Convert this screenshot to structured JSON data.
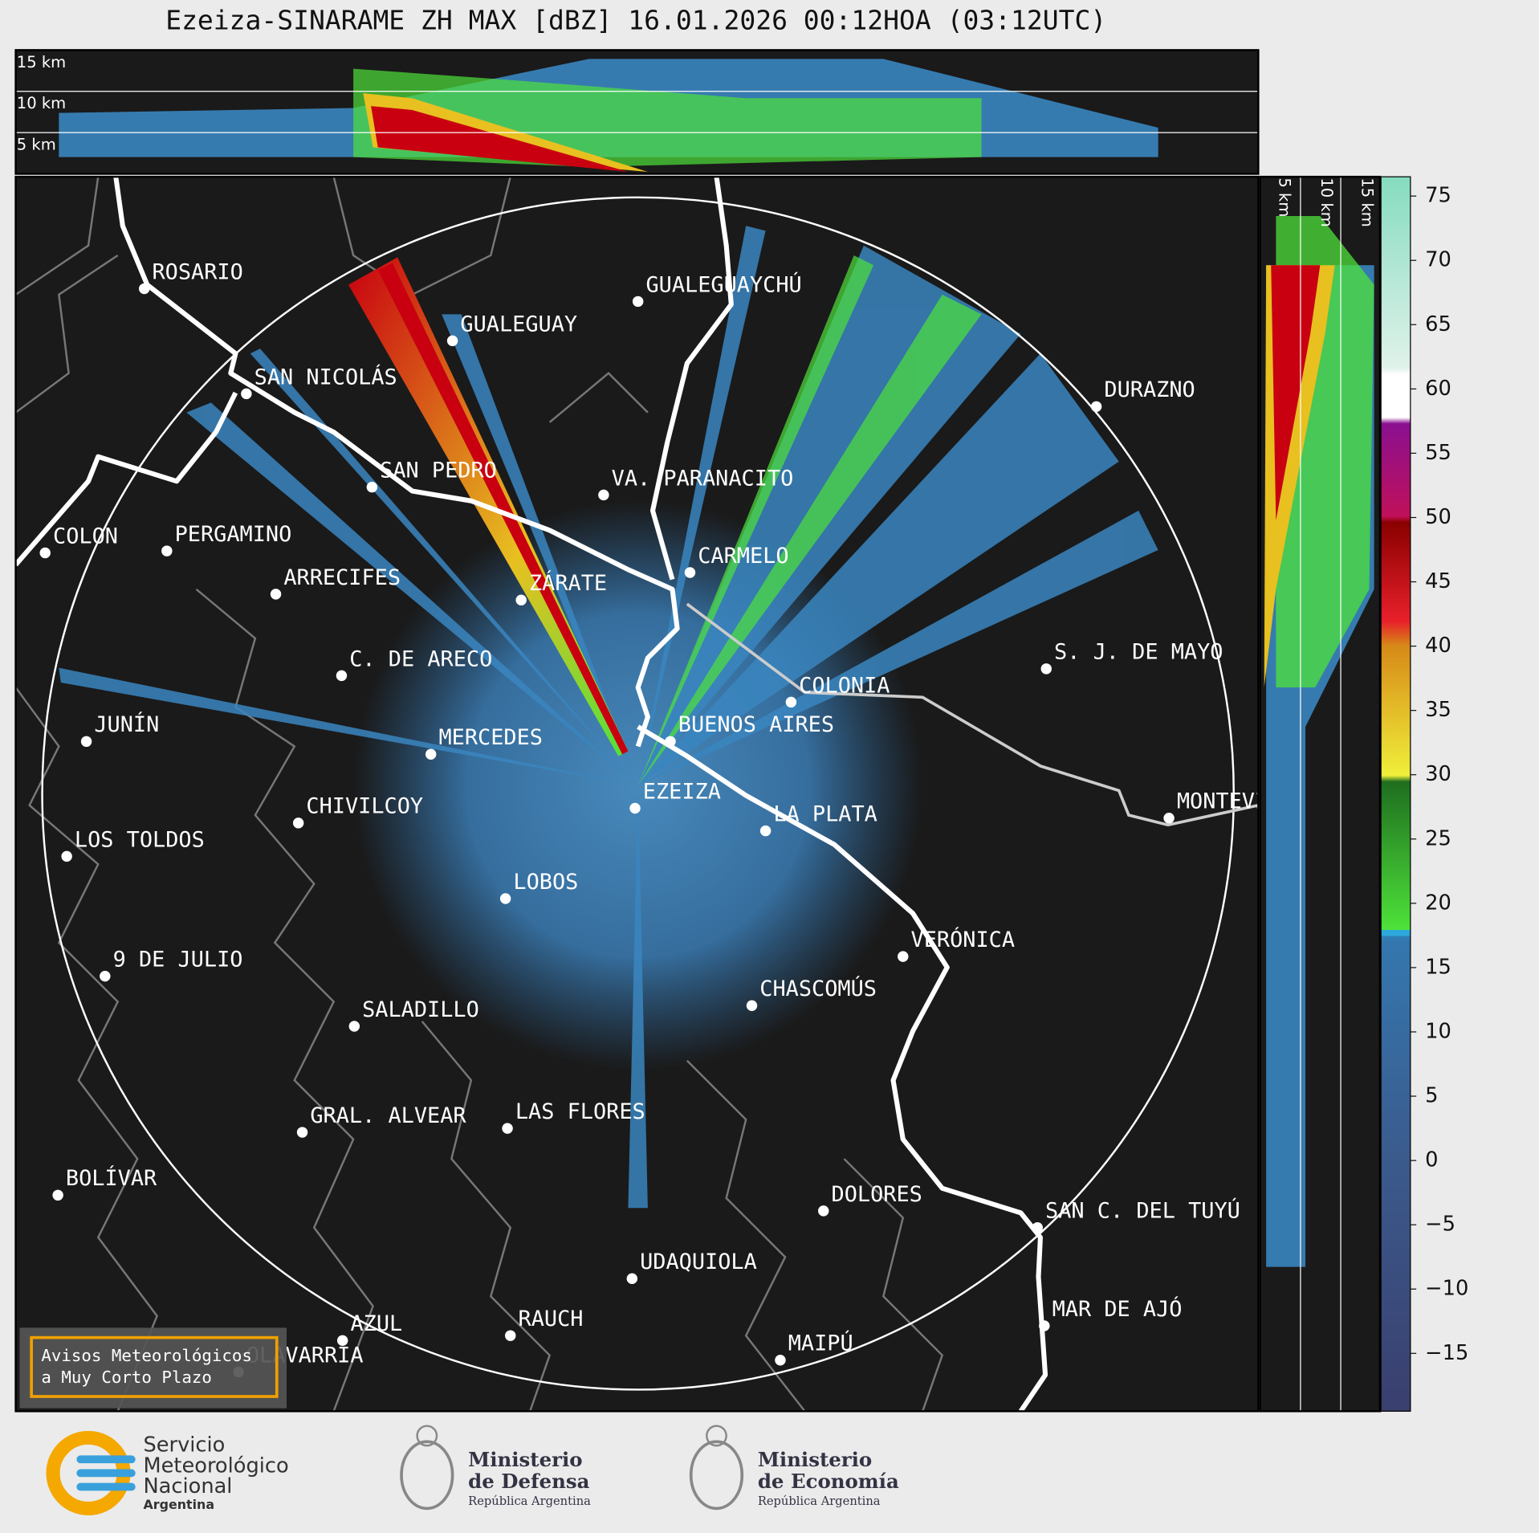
{
  "title": "Ezeiza-SINARAME ZH MAX [dBZ] 16.01.2026 00:12HOA (03:12UTC)",
  "top_panel": {
    "heights": [
      "15 km",
      "10 km",
      "5 km"
    ]
  },
  "side_panel": {
    "heights": [
      "5 km",
      "10 km",
      "15 km"
    ]
  },
  "cities": [
    "ROSARIO",
    "GUALEGUAYCHÚ",
    "GUALEGUAY",
    "SAN NICOLÁS",
    "DURAZNO",
    "SAN PEDRO",
    "VA. PARANACITO",
    "COLON",
    "PERGAMINO",
    "CARMELO",
    "ARRECIFES",
    "ZÁRATE",
    "S. J. DE MAYO",
    "C. DE ARECO",
    "COLONIA",
    "BUENOS AIRES",
    "JUNÍN",
    "MERCEDES",
    "EZEIZA",
    "MONTEVIDEO",
    "CHIVILCOY",
    "LA PLATA",
    "LOS TOLDOS",
    "LOBOS",
    "VERÓNICA",
    "9 DE JULIO",
    "CHASCOMÚS",
    "SALADILLO",
    "GRAL. ALVEAR",
    "LAS FLORES",
    "BOLÍVAR",
    "DOLORES",
    "SAN C. DEL TUYÚ",
    "UDAQUIOLA",
    "MAR DE AJÓ",
    "AZUL",
    "RAUCH",
    "OLAVARRÍA",
    "MAIPÚ"
  ],
  "warning_box": [
    "Avisos Meteorológicos",
    "a Muy Corto Plazo"
  ],
  "colorbar": {
    "lim": [
      -19.5,
      76.5
    ],
    "ticks": [
      75,
      70,
      65,
      60,
      55,
      50,
      45,
      40,
      35,
      30,
      25,
      20,
      15,
      10,
      5,
      0,
      {
        "value": -5,
        "label": "−5"
      },
      {
        "value": -10,
        "label": "−10"
      },
      {
        "value": -15,
        "label": "−15"
      }
    ]
  },
  "footer": {
    "smn": [
      "Servicio",
      "Meteorológico",
      "Nacional",
      "Argentina"
    ],
    "defensa": [
      "Ministerio",
      "de Defensa",
      "República Argentina"
    ],
    "economia": [
      "Ministerio",
      "de Economía",
      "República Argentina"
    ]
  }
}
